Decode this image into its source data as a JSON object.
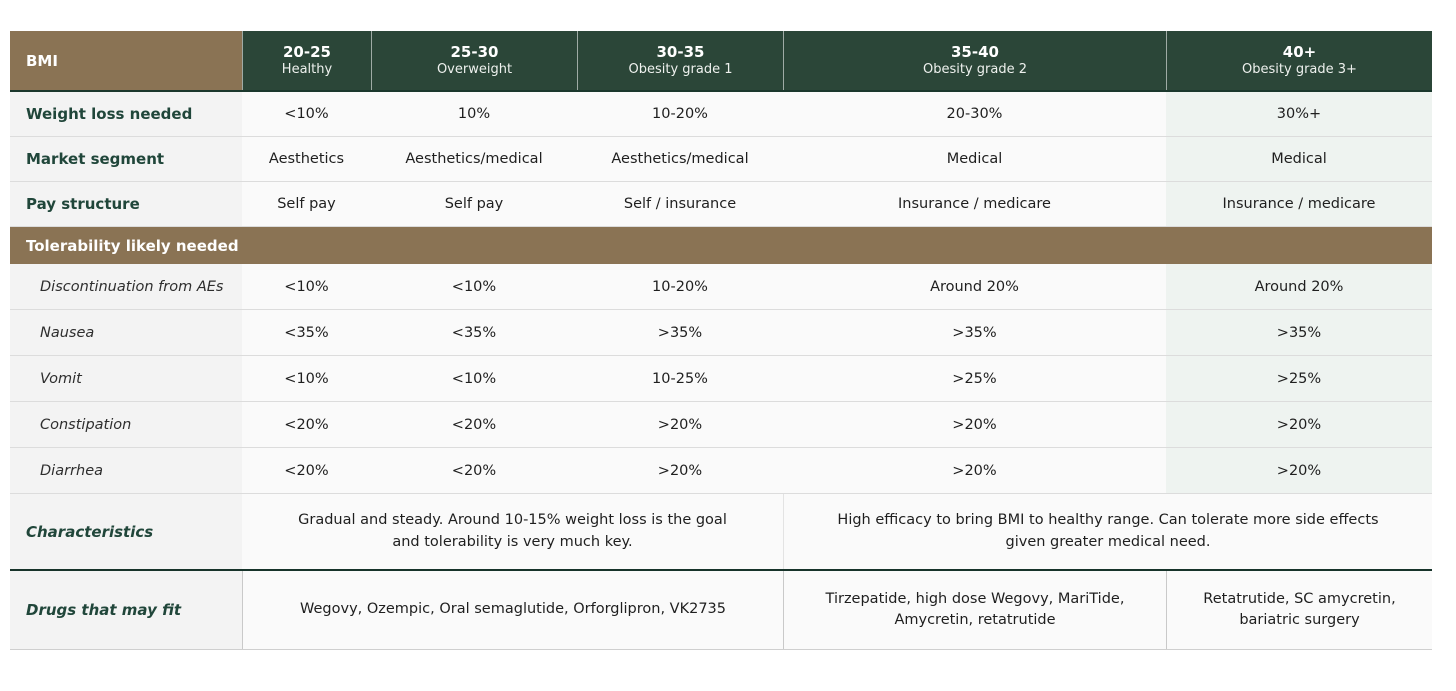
{
  "table": {
    "corner_label": "BMI",
    "columns": [
      {
        "range": "20-25",
        "category": "Healthy"
      },
      {
        "range": "25-30",
        "category": "Overweight"
      },
      {
        "range": "30-35",
        "category": "Obesity grade 1"
      },
      {
        "range": "35-40",
        "category": "Obesity grade 2"
      },
      {
        "range": "40+",
        "category": "Obesity grade 3+"
      }
    ],
    "rows": [
      {
        "label": "Weight loss needed",
        "values": [
          "<10%",
          "10%",
          "10-20%",
          "20-30%",
          "30%+"
        ]
      },
      {
        "label": "Market segment",
        "values": [
          "Aesthetics",
          "Aesthetics/medical",
          "Aesthetics/medical",
          "Medical",
          "Medical"
        ]
      },
      {
        "label": "Pay structure",
        "values": [
          "Self pay",
          "Self pay",
          "Self / insurance",
          "Insurance / medicare",
          "Insurance / medicare"
        ]
      }
    ],
    "section_header": "Tolerability likely needed",
    "tolerability_rows": [
      {
        "label": "Discontinuation from AEs",
        "values": [
          "<10%",
          "<10%",
          "10-20%",
          "Around 20%",
          "Around 20%"
        ]
      },
      {
        "label": "Nausea",
        "values": [
          "<35%",
          "<35%",
          ">35%",
          ">35%",
          ">35%"
        ]
      },
      {
        "label": "Vomit",
        "values": [
          "<10%",
          "<10%",
          "10-25%",
          ">25%",
          ">25%"
        ]
      },
      {
        "label": "Constipation",
        "values": [
          "<20%",
          "<20%",
          ">20%",
          ">20%",
          ">20%"
        ]
      },
      {
        "label": "Diarrhea",
        "values": [
          "<20%",
          "<20%",
          ">20%",
          ">20%",
          ">20%"
        ]
      }
    ],
    "characteristics": {
      "label": "Characteristics",
      "left_text": "Gradual and steady. Around 10-15% weight loss is the goal and tolerability is very much key.",
      "right_text": "High efficacy to bring BMI to healthy range. Can tolerate more side effects given greater medical need."
    },
    "drugs": {
      "label": "Drugs that may fit",
      "cells": [
        "Wegovy, Ozempic, Oral semaglutide, Orforglipron, VK2735",
        "Tirzepatide, high dose Wegovy, MariTide, Amycretin, retatrutide",
        "Retatrutide, SC amycretin, bariatric surgery"
      ]
    },
    "colors": {
      "brown": "#8a7354",
      "header_green": "#2b4638",
      "label_green": "#20463a",
      "accent_line_green": "#17332a",
      "highlight_column_bg": "#eef3f0"
    }
  }
}
